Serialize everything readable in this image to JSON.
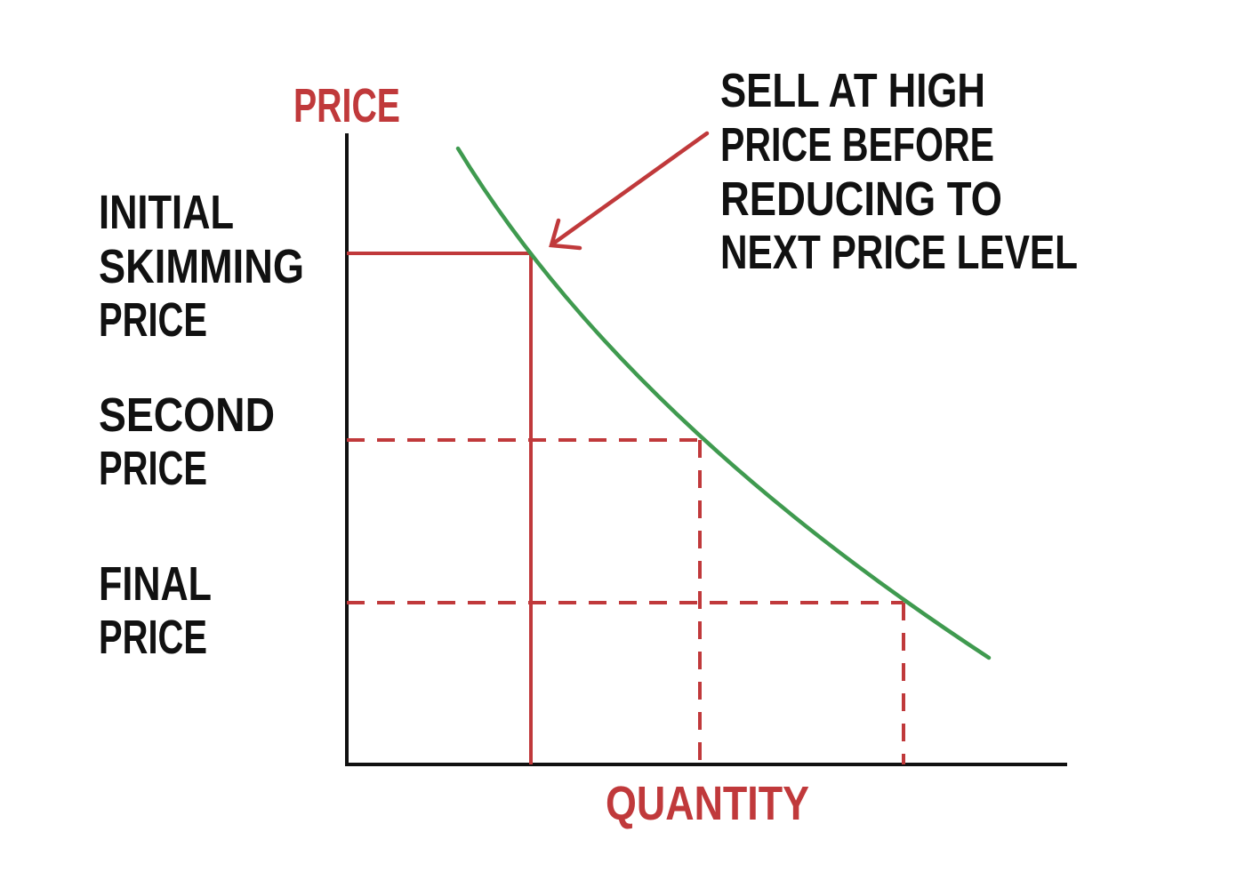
{
  "axes": {
    "y_label": "PRICE",
    "x_label": "QUANTITY"
  },
  "price_levels": {
    "initial": [
      "INITIAL",
      "SKIMMING",
      "PRICE"
    ],
    "second": [
      "SECOND",
      "PRICE"
    ],
    "final": [
      "FINAL",
      "PRICE"
    ]
  },
  "annotation": [
    "SELL AT HIGH",
    "PRICE BEFORE",
    "REDUCING TO",
    "NEXT PRICE LEVEL"
  ],
  "colors": {
    "axis": "#111111",
    "guides": "#c0393b",
    "demand_curve": "#3f9a4f",
    "label_accent": "#c0393b"
  }
}
